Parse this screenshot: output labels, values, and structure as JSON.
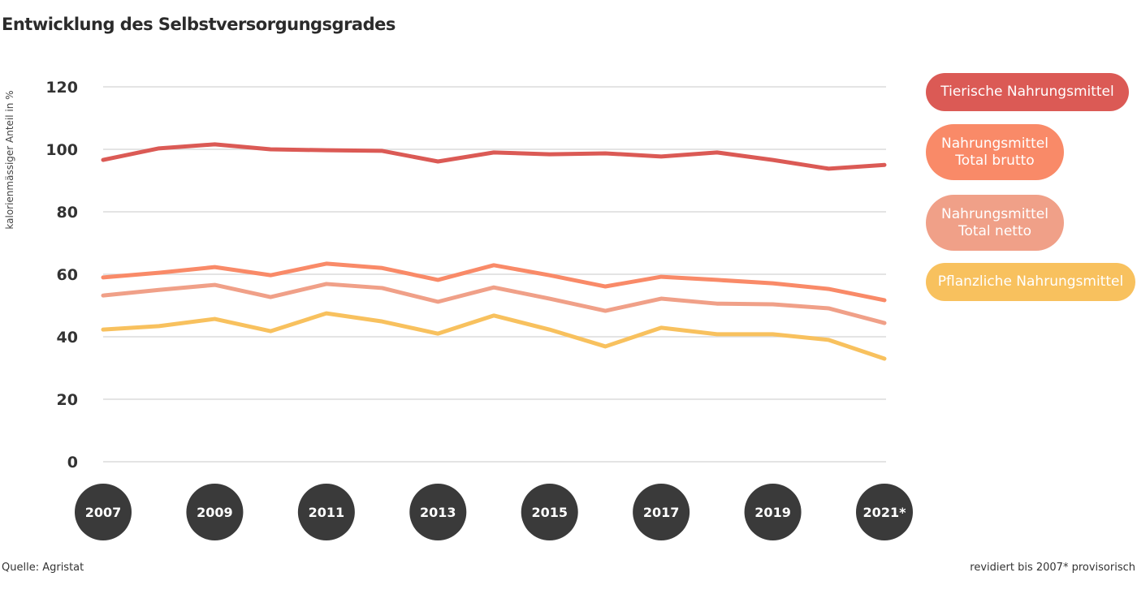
{
  "chart_data": {
    "type": "line",
    "title": "Entwicklung des Selbstversorgungsgrades",
    "ylabel": "kalorienmässiger Anteil in %",
    "xlabel": "",
    "ylim": [
      0,
      120
    ],
    "yticks": [
      0,
      20,
      40,
      60,
      80,
      100,
      120
    ],
    "grid": true,
    "legend_placement": "right",
    "x": [
      2007,
      2008,
      2009,
      2010,
      2011,
      2012,
      2013,
      2014,
      2015,
      2016,
      2017,
      2018,
      2019,
      2020,
      2021
    ],
    "xtick_labels": [
      "2007",
      "2009",
      "2011",
      "2013",
      "2015",
      "2017",
      "2019",
      "2021*"
    ],
    "xtick_years": [
      2007,
      2009,
      2011,
      2013,
      2015,
      2017,
      2019,
      2021
    ],
    "series": [
      {
        "name": "Tierische Nahrungsmittel",
        "color": "#db5a55",
        "values": [
          96.6,
          100.3,
          101.6,
          100,
          99.7,
          99.5,
          96.1,
          99,
          98.4,
          98.7,
          97.7,
          99,
          96.6,
          93.8,
          95
        ]
      },
      {
        "name": "Nahrungsmittel Total brutto",
        "color": "#f98a68",
        "values": [
          59,
          60.5,
          62.3,
          59.7,
          63.4,
          62,
          58.2,
          62.9,
          59.7,
          56.1,
          59.2,
          58.2,
          57.1,
          55.3,
          51.7
        ]
      },
      {
        "name": "Nahrungsmittel Total netto",
        "color": "#f0a088",
        "values": [
          53.2,
          55,
          56.6,
          52.7,
          56.9,
          55.6,
          51.2,
          55.8,
          52.2,
          48.3,
          52.2,
          50.6,
          50.4,
          49.1,
          44.4
        ]
      },
      {
        "name": "Pflanzliche Nahrungsmittel",
        "color": "#f8c15e",
        "values": [
          42.3,
          43.4,
          45.7,
          41.8,
          47.5,
          44.9,
          41,
          46.8,
          42.3,
          36.9,
          42.9,
          40.8,
          40.8,
          39,
          33
        ]
      }
    ]
  },
  "footer": {
    "source": "Quelle: Agristat",
    "note": "revidiert bis 2007* provisorisch"
  }
}
